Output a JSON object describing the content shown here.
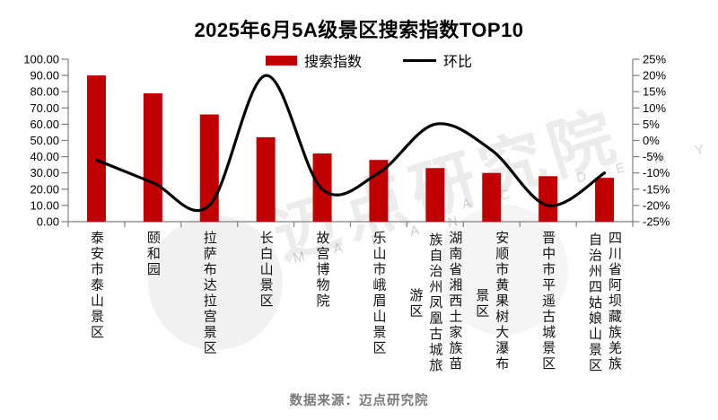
{
  "footer": {
    "source_label": "数据来源：迈点研究院"
  },
  "watermark": {
    "text": "迈点研究院",
    "letters_left": "M A D A N",
    "letters_right": "A C A D E M Y"
  },
  "colors": {
    "bar": "#C00000",
    "line": "#000000",
    "axis": "#7f7f7f",
    "tick_label": "#000000",
    "footer_text": "#7a7a7a"
  },
  "axes": {
    "left_ticks": [
      "100.00",
      "90.00",
      "80.00",
      "70.00",
      "60.00",
      "50.00",
      "40.00",
      "30.00",
      "20.00",
      "10.00",
      "0.00"
    ],
    "right_ticks": [
      "25%",
      "20%",
      "15%",
      "10%",
      "5%",
      "0%",
      "-5%",
      "-10%",
      "-15%",
      "-20%",
      "-25%"
    ]
  },
  "chart_data": {
    "type": "bar+line",
    "title": "2025年6月5A级景区搜索指数TOP10",
    "categories": [
      "泰安市泰山景区",
      "颐和园",
      "拉萨布达拉宫景区",
      "长白山景区",
      "故宫博物院",
      "乐山市峨眉山景区",
      "湖南省湘西土家族苗族自治州凤凰古城旅游区",
      "安顺市黄果树大瀑布景区",
      "晋中市平遥古城景区",
      "四川省阿坝藏族羌族自治州四姑娘山景区"
    ],
    "label_lines": [
      [
        "泰安市泰山景区"
      ],
      [
        "颐和园"
      ],
      [
        "拉萨布达拉宫景区"
      ],
      [
        "长白山景区"
      ],
      [
        "故宫博物院"
      ],
      [
        "乐山市峨眉山景区"
      ],
      [
        "湖南省湘西土家族苗",
        "族自治州凤凰古城旅",
        "游区"
      ],
      [
        "安顺市黄果树大瀑布",
        "景区"
      ],
      [
        "晋中市平遥古城景区"
      ],
      [
        "四川省阿坝藏族羌族",
        "自治州四姑娘山景区"
      ]
    ],
    "series": [
      {
        "name": "搜索指数",
        "type": "bar",
        "axis": "left",
        "values": [
          90,
          79,
          66,
          52,
          42,
          38,
          33,
          30,
          28,
          27
        ]
      },
      {
        "name": "环比",
        "type": "line",
        "axis": "right",
        "unit": "%",
        "values": [
          -6,
          -13,
          -20,
          20,
          -15,
          -10,
          5,
          -3,
          -20,
          -10
        ]
      }
    ],
    "left_axis": {
      "min": 0,
      "max": 100,
      "step": 10
    },
    "right_axis": {
      "min": -25,
      "max": 25,
      "step": 5,
      "format": "percent"
    },
    "grid": false,
    "legend_position": "top",
    "line_style": "smooth"
  }
}
